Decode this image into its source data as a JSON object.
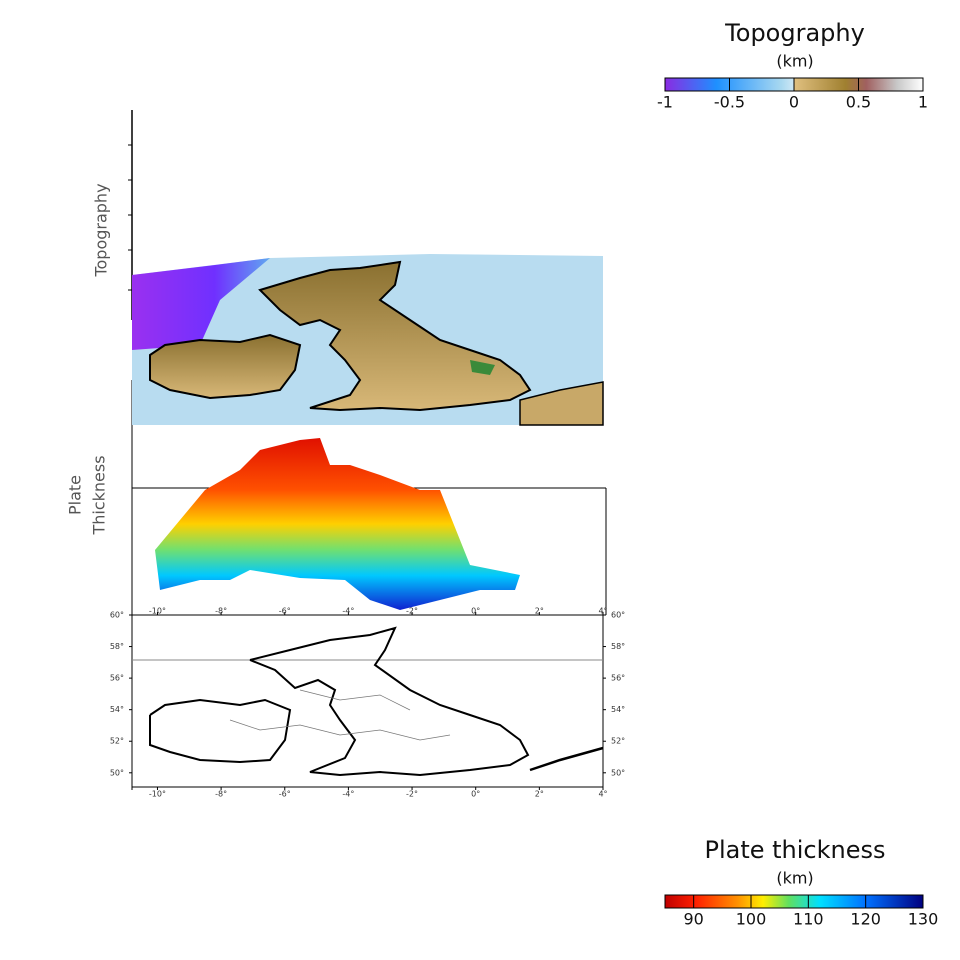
{
  "topography_colorbar": {
    "title": "Topography",
    "unit": "(km)",
    "lim": [
      -1,
      1
    ],
    "ticks": [
      -1,
      -0.5,
      0,
      0.5,
      1
    ]
  },
  "thickness_colorbar": {
    "title": "Plate thickness",
    "unit": "(km)",
    "lim": [
      85,
      130
    ],
    "ticks": [
      90,
      100,
      110,
      120,
      130
    ]
  },
  "side_labels": {
    "topography": "Topography",
    "plate_thickness": [
      "Plate",
      "Thickness"
    ]
  },
  "plate_panel": {
    "xlim": [
      -10.8,
      4
    ],
    "xticks": [
      {
        "value": -10,
        "label": "-10°"
      },
      {
        "value": -8,
        "label": "-8°"
      },
      {
        "value": -6,
        "label": "-6°"
      },
      {
        "value": -4,
        "label": "-4°"
      },
      {
        "value": -2,
        "label": "-2°"
      },
      {
        "value": 0,
        "label": "0°"
      },
      {
        "value": 2,
        "label": "2°"
      },
      {
        "value": 4,
        "label": "4°"
      }
    ]
  },
  "map_panel": {
    "xlim": [
      -10.8,
      4
    ],
    "ylim": [
      49.1,
      60
    ],
    "xticks": [
      {
        "value": -10,
        "label": "-10°"
      },
      {
        "value": -8,
        "label": "-8°"
      },
      {
        "value": -6,
        "label": "-6°"
      },
      {
        "value": -4,
        "label": "-4°"
      },
      {
        "value": -2,
        "label": "-2°"
      },
      {
        "value": 0,
        "label": "0°"
      },
      {
        "value": 2,
        "label": "2°"
      },
      {
        "value": 4,
        "label": "4°"
      }
    ],
    "yticks": [
      {
        "value": 60,
        "label": "60°"
      },
      {
        "value": 58,
        "label": "58°"
      },
      {
        "value": 56,
        "label": "56°"
      },
      {
        "value": 54,
        "label": "54°"
      },
      {
        "value": 52,
        "label": "52°"
      },
      {
        "value": 50,
        "label": "50°"
      }
    ]
  }
}
